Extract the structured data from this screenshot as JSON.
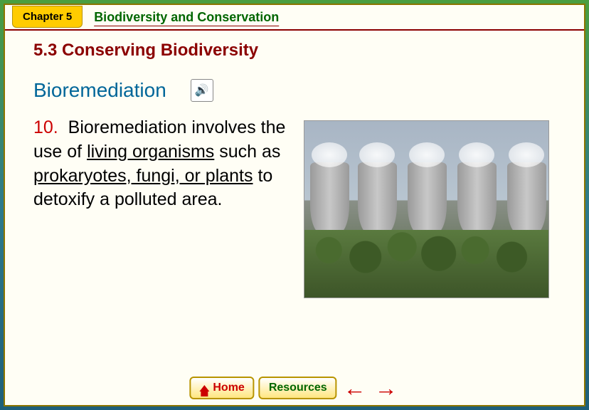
{
  "header": {
    "chapter_tab": "Chapter 5",
    "chapter_title": "Biodiversity and Conservation"
  },
  "content": {
    "section_title": "5.3 Conserving Biodiversity",
    "subheading": "Bioremediation",
    "item_number": "10.",
    "body_parts": {
      "p1": "Bioremediation involves the use of ",
      "u1": "living organisms",
      "p2": " such as ",
      "u2": "prokaryotes, fungi, or plants",
      "p3": " to detoxify a polluted area."
    }
  },
  "footer": {
    "home_label": "Home",
    "resources_label": "Resources",
    "arrow_left": "←",
    "arrow_right": "→"
  },
  "icons": {
    "speaker": "🔊"
  },
  "colors": {
    "accent_red": "#cc0000",
    "accent_green": "#006600",
    "accent_blue": "#006699",
    "tab_yellow": "#ffcc00"
  }
}
